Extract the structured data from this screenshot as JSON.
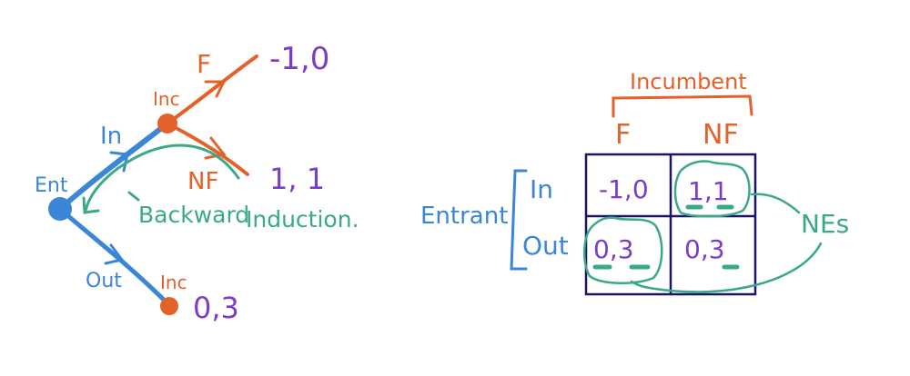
{
  "colors": {
    "entrant": "#3b86d6",
    "incumbent": "#e4622a",
    "payoff": "#7b3fc6",
    "annotation": "#3aa987",
    "grid": "#1b1464"
  },
  "tree": {
    "root_label": "Ent",
    "in_label": "In",
    "out_label": "Out",
    "inc_top_label": "Inc",
    "inc_bottom_label": "Inc",
    "f_label": "F",
    "nf_label": "NF",
    "payoff_f": "-1,0",
    "payoff_nf": "1, 1",
    "payoff_out": "0,3",
    "backward_text": "Backward",
    "induction_text": "Induction."
  },
  "matrix": {
    "player_col": "Incumbent",
    "player_row": "Entrant",
    "col_headers": [
      "F",
      "NF"
    ],
    "row_headers": [
      "In",
      "Out"
    ],
    "cells": [
      [
        "-1,0",
        "1,1"
      ],
      [
        "0,3",
        "0,3"
      ]
    ],
    "ne_label": "NEs"
  }
}
